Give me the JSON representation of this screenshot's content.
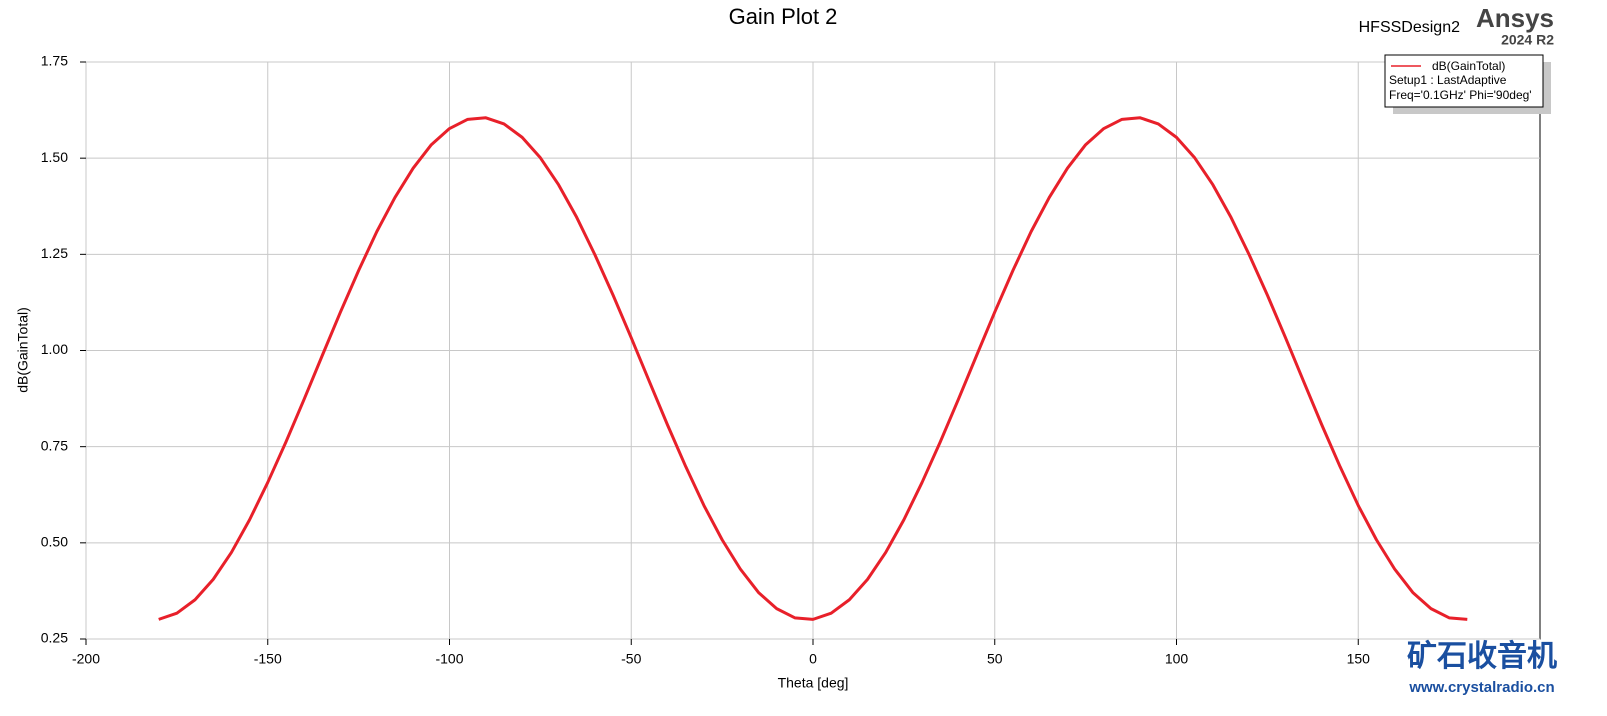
{
  "chart_data": {
    "type": "line",
    "title": "Gain Plot 2",
    "design": "HFSSDesign2",
    "brand": "Ansys",
    "version": "2024 R2",
    "x_label": "Theta [deg]",
    "y_label": "dB(GainTotal)",
    "xlim": [
      -200,
      200
    ],
    "ylim": [
      0.25,
      1.75
    ],
    "xticks": [
      -200,
      -150,
      -100,
      -50,
      0,
      50,
      100,
      150
    ],
    "yticks": [
      0.25,
      {
        "value": 0.5,
        "label": "0.50"
      },
      0.75,
      {
        "value": 1,
        "label": "1.00"
      },
      1.25,
      {
        "value": 1.5,
        "label": "1.50"
      },
      1.75
    ],
    "grid": true,
    "legend_position": "upper right",
    "legend_notes": [
      "Setup1 : LastAdaptive",
      "Freq='0.1GHz' Phi='90deg'"
    ],
    "watermark": [
      "矿石收音机",
      "www.crystalradio.cn"
    ],
    "x": [
      -180,
      -175,
      -170,
      -165,
      -160,
      -155,
      -150,
      -145,
      -140,
      -135,
      -130,
      -125,
      -120,
      -115,
      -110,
      -105,
      -100,
      -95,
      -90,
      -85,
      -80,
      -75,
      -70,
      -65,
      -60,
      -55,
      -50,
      -45,
      -40,
      -35,
      -30,
      -25,
      -20,
      -15,
      -10,
      -5,
      0,
      5,
      10,
      15,
      20,
      25,
      30,
      35,
      40,
      45,
      50,
      55,
      60,
      65,
      70,
      75,
      80,
      85,
      90,
      95,
      100,
      105,
      110,
      115,
      120,
      125,
      130,
      135,
      140,
      145,
      150,
      155,
      160,
      165,
      170,
      175,
      180
    ],
    "series": [
      {
        "name": "dB(GainTotal)",
        "color": "#e8202a",
        "values": [
          0.301,
          0.317,
          0.352,
          0.405,
          0.475,
          0.56,
          0.657,
          0.762,
          0.873,
          0.987,
          1.1,
          1.208,
          1.309,
          1.398,
          1.474,
          1.535,
          1.577,
          1.601,
          1.605,
          1.589,
          1.554,
          1.501,
          1.431,
          1.346,
          1.249,
          1.144,
          1.033,
          0.919,
          0.806,
          0.698,
          0.597,
          0.508,
          0.432,
          0.371,
          0.329,
          0.305,
          0.301,
          0.317,
          0.352,
          0.405,
          0.475,
          0.56,
          0.657,
          0.762,
          0.873,
          0.987,
          1.1,
          1.208,
          1.309,
          1.398,
          1.474,
          1.535,
          1.577,
          1.601,
          1.605,
          1.589,
          1.554,
          1.501,
          1.431,
          1.346,
          1.249,
          1.144,
          1.033,
          0.919,
          0.806,
          0.698,
          0.597,
          0.508,
          0.432,
          0.371,
          0.329,
          0.305,
          0.301
        ]
      }
    ]
  }
}
